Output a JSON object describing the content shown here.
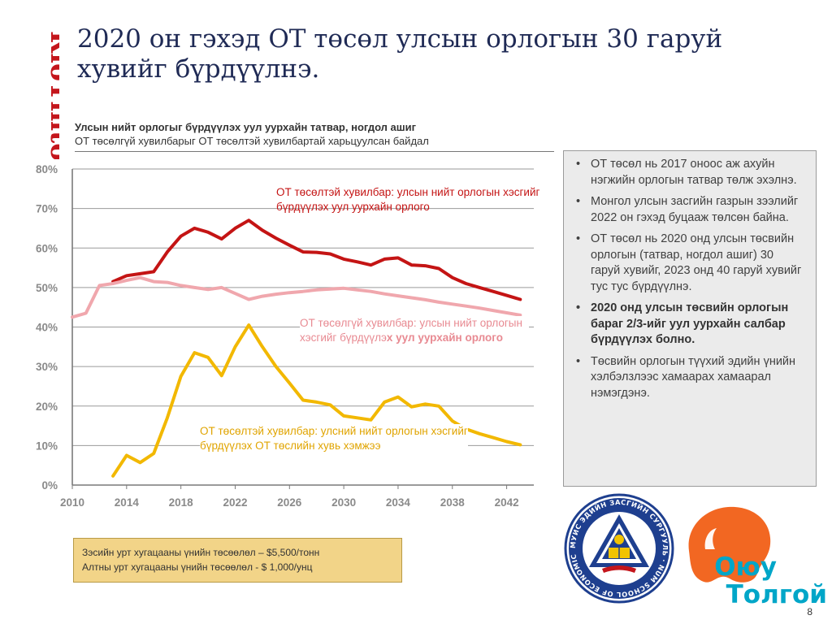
{
  "brand": {
    "name": "RioTinto",
    "color": "#c4161c"
  },
  "title": "2020 он гэхэд ОТ төсөл улсын орлогын 30 гаруй хувийг бүрдүүлнэ.",
  "chart_header": {
    "line1": "Улсын нийт орлогыг бүрдүүлэх уул уурхайн татвар, ногдол ашиг",
    "line2": "ОТ төсөлгүй хувилбарыг ОТ төсөлтэй хувилбартай харьцуулсан байдал"
  },
  "annotations": {
    "red": "ОТ төсөлтэй хувилбар: улсын нийт орлогын хэсгийг бүрдүүлэх уул уурхайн орлого",
    "pink_a": "ОТ төсөлгүй хувилбар: улсын нийт орлогын хэсгийг бүрдүүлэ",
    "pink_b": "х уул уурхайн орлого",
    "yellow": "ОТ төсөлтэй хувилбар: улсний нийт орлогын хэсгийг бүрдүүлэх ОТ төслийн хувь хэмжээ"
  },
  "bullets": [
    {
      "text": "ОТ төсөл нь 2017 оноос аж ахуйн нэгжийн орлогын татвар төлж эхэлнэ.",
      "bold": false
    },
    {
      "text": "Монгол улсын засгийн газрын зээлийг 2022 он гэхэд буцааж төлсөн байна.",
      "bold": false
    },
    {
      "text": "ОТ төсөл нь 2020 онд улсын төсвийн орлогын (татвар, ногдол ашиг) 30 гаруй хувийг, 2023 онд 40 гаруй хувийг тус тус бүрдүүлнэ.",
      "bold": false
    },
    {
      "text": "2020 онд улсын төсвийн орлогын бараг 2/3-ийг уул уурхайн салбар бүрдүүлэх болно.",
      "bold": true
    },
    {
      "text": "Төсвийн орлогын түүхий эдийн үнийн хэлбэлзлээс хамаарах хамаарал нэмэгдэнэ.",
      "bold": false
    }
  ],
  "note": {
    "line1": "Зэсийн урт хугацааны үнийн төсөөлөл – $5,500/тонн",
    "line2": "Алтны урт хугацааны үнийн төсөөлөл - $ 1,000/унц"
  },
  "logos": {
    "school_ring": "МУИС ЭДИЙН ЗАСГИЙН СУРГУУЛЬ · NUM SCHOOL OF ECONOMIC STUDIES",
    "oyu_line1": "Оюу",
    "oyu_line2": "Толгой",
    "oyu_color": "#f26722",
    "oyu_text_color": "#00a6c8"
  },
  "page_number": "8",
  "chart_data": {
    "type": "line",
    "title": "",
    "xlabel": "",
    "ylabel": "",
    "xlim": [
      2010,
      2044
    ],
    "ylim": [
      0,
      80
    ],
    "x_ticks": [
      "2010",
      "2014",
      "2018",
      "2022",
      "2026",
      "2030",
      "2034",
      "2038",
      "2042"
    ],
    "y_ticks": [
      "0%",
      "10%",
      "20%",
      "30%",
      "40%",
      "50%",
      "60%",
      "70%",
      "80%"
    ],
    "grid": true,
    "series": [
      {
        "color": "#c41414",
        "x": [
          2013,
          2014,
          2015,
          2016,
          2017,
          2018,
          2019,
          2020,
          2021,
          2022,
          2023,
          2024,
          2025,
          2026,
          2027,
          2028,
          2029,
          2030,
          2031,
          2032,
          2033,
          2034,
          2035,
          2036,
          2037,
          2038,
          2039,
          2040,
          2041,
          2042,
          2043
        ],
        "y": [
          51.5,
          53,
          53.5,
          54,
          59,
          63,
          65,
          64,
          62.3,
          65,
          67,
          64.5,
          62.5,
          60.7,
          59,
          58.9,
          58.5,
          57.2,
          56.5,
          55.7,
          57.2,
          57.5,
          55.7,
          55.5,
          54.8,
          52.5,
          51,
          50,
          49,
          48,
          47
        ]
      },
      {
        "color": "#f0a7ad",
        "x": [
          2010,
          2011,
          2012,
          2013,
          2014,
          2015,
          2016,
          2017,
          2018,
          2019,
          2020,
          2021,
          2022,
          2023,
          2024,
          2025,
          2026,
          2027,
          2028,
          2029,
          2030,
          2031,
          2032,
          2033,
          2034,
          2035,
          2036,
          2037,
          2038,
          2039,
          2040,
          2041,
          2042,
          2043
        ],
        "y": [
          42.5,
          43.5,
          50.5,
          51,
          51.8,
          52.5,
          51.5,
          51.3,
          50.5,
          50,
          49.5,
          50,
          48.5,
          47,
          47.8,
          48.3,
          48.7,
          49,
          49.4,
          49.6,
          49.8,
          49.4,
          49,
          48.4,
          47.9,
          47.4,
          46.9,
          46.3,
          45.8,
          45.3,
          44.8,
          44.2,
          43.6,
          43
        ]
      },
      {
        "color": "#f2b800",
        "x": [
          2013,
          2014,
          2015,
          2016,
          2017,
          2018,
          2019,
          2020,
          2021,
          2022,
          2023,
          2024,
          2025,
          2026,
          2027,
          2028,
          2029,
          2030,
          2031,
          2032,
          2033,
          2034,
          2035,
          2036,
          2037,
          2038,
          2039,
          2040,
          2041,
          2042,
          2043
        ],
        "y": [
          2.3,
          7.5,
          5.7,
          8,
          17,
          27.5,
          33.5,
          32.3,
          27.7,
          35,
          40.5,
          35,
          30,
          25.8,
          21.5,
          21,
          20.3,
          17.5,
          17,
          16.5,
          21,
          22.3,
          19.8,
          20.5,
          20,
          16.2,
          14.2,
          13,
          12,
          11,
          10.2
        ]
      }
    ]
  }
}
